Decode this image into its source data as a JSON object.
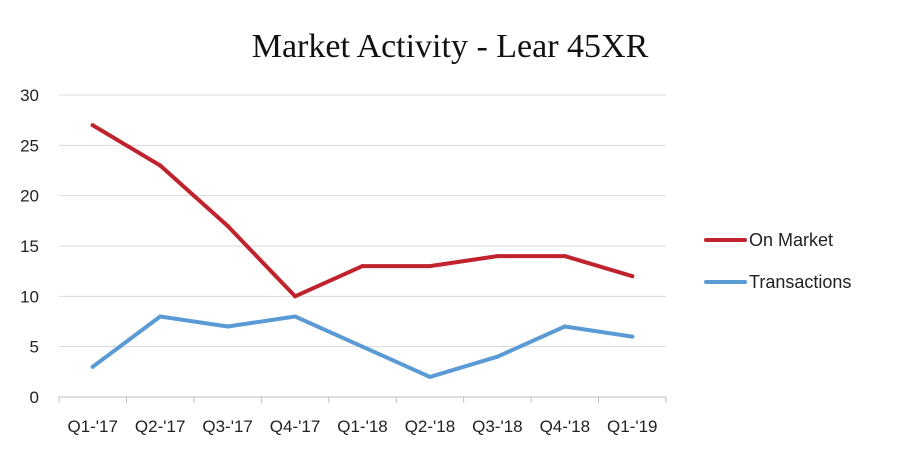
{
  "chart_data": {
    "type": "line",
    "title": "Market Activity - Lear 45XR",
    "xlabel": "",
    "ylabel": "",
    "categories": [
      "Q1-'17",
      "Q2-'17",
      "Q3-'17",
      "Q4-'17",
      "Q1-'18",
      "Q2-'18",
      "Q3-'18",
      "Q4-'18",
      "Q1-'19"
    ],
    "series": [
      {
        "name": "On Market",
        "color": "#c0222e",
        "values": [
          27,
          23,
          17,
          10,
          13,
          13,
          14,
          14,
          12
        ]
      },
      {
        "name": "Transactions",
        "color": "#5b9bd5",
        "values": [
          3,
          8,
          7,
          8,
          5,
          2,
          4,
          7,
          6
        ]
      }
    ],
    "ylim": [
      0,
      30
    ],
    "yticks": [
      0,
      5,
      10,
      15,
      20,
      25,
      30
    ],
    "grid": true,
    "legend": "right"
  }
}
